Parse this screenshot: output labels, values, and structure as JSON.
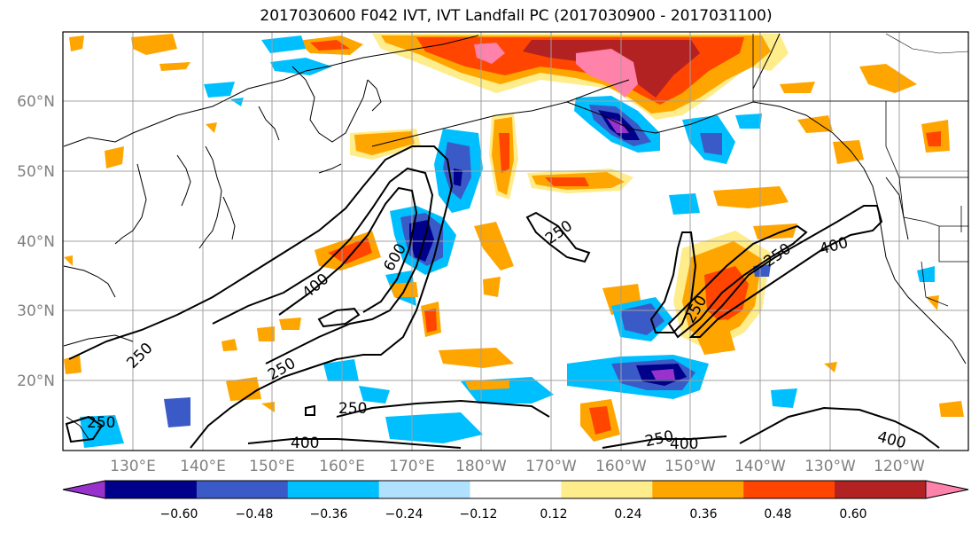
{
  "title": "2017030600 F042 IVT, IVT Landfall PC (2017030900 - 2017031100)",
  "lat_labels": [
    "60°N",
    "50°N",
    "40°N",
    "30°N",
    "20°N"
  ],
  "lon_labels": [
    "130°E",
    "140°E",
    "150°E",
    "160°E",
    "170°E",
    "180°W",
    "170°W",
    "160°W",
    "150°W",
    "140°W",
    "130°W",
    "120°W"
  ],
  "contour_labels": [
    "250",
    "250",
    "250",
    "250",
    "250",
    "250",
    "250",
    "250",
    "400",
    "400",
    "400",
    "400",
    "400",
    "600"
  ],
  "colorbar": {
    "tick_labels": [
      "−0.60",
      "−0.48",
      "−0.36",
      "−0.24",
      "−0.12",
      "0.12",
      "0.24",
      "0.36",
      "0.48",
      "0.60"
    ],
    "colors": [
      "#9932CC",
      "#00008B",
      "#3A5BC7",
      "#00BFFF",
      "#B0E2FF",
      "#FFFFFF",
      "#FFEC8B",
      "#FFA500",
      "#FF4500",
      "#B22222",
      "#FF82AB"
    ]
  }
}
